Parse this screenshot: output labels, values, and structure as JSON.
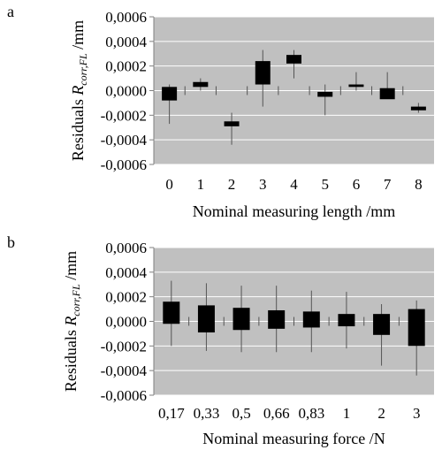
{
  "colors": {
    "plot_bg": "#c0c0c0",
    "gridline": "#ffffff",
    "box_fill": "#000000",
    "whisker": "#555555",
    "axis": "#808080"
  },
  "chart_data": [
    {
      "type": "box",
      "panel_label": "a",
      "title": "",
      "xlabel": "Nominal measuring length /mm",
      "ylabel_prefix": "Residuals ",
      "ylabel_var": "R",
      "ylabel_sub": "corr,FL",
      "ylabel_unit": " /mm",
      "ylim": [
        -0.0006,
        0.0006
      ],
      "yticks": [
        0.0006,
        0.0004,
        0.0002,
        0.0,
        -0.0002,
        -0.0004,
        -0.0006
      ],
      "ytick_labels": [
        "0,0006",
        "0,0004",
        "0,0002",
        "0,0000",
        "-0,0002",
        "-0,0004",
        "-0,0006"
      ],
      "grid": true,
      "categories": [
        "0",
        "1",
        "2",
        "3",
        "4",
        "5",
        "6",
        "7",
        "8"
      ],
      "whisker_low": [
        -0.00027,
        0.0,
        -0.00044,
        -0.00013,
        0.0001,
        -0.0002,
        0.0,
        -5e-05,
        -0.00018
      ],
      "box_low": [
        -8e-05,
        3e-05,
        -0.00029,
        5e-05,
        0.00022,
        -5e-05,
        3e-05,
        -7e-05,
        -0.00016
      ],
      "box_high": [
        3e-05,
        7e-05,
        -0.00025,
        0.00024,
        0.00029,
        -1e-05,
        5e-05,
        2e-05,
        -0.00013
      ],
      "whisker_high": [
        5e-05,
        0.0001,
        -0.00018,
        0.00033,
        0.00033,
        5e-05,
        0.00015,
        0.00015,
        -0.0001
      ]
    },
    {
      "type": "box",
      "panel_label": "b",
      "title": "",
      "xlabel": "Nominal measuring force /N",
      "ylabel_prefix": "Residuals ",
      "ylabel_var": "R",
      "ylabel_sub": "corr,FL",
      "ylabel_unit": " /mm",
      "ylim": [
        -0.0006,
        0.0006
      ],
      "yticks": [
        0.0006,
        0.0004,
        0.0002,
        0.0,
        -0.0002,
        -0.0004,
        -0.0006
      ],
      "ytick_labels": [
        "0,0006",
        "0,0004",
        "0,0002",
        "0,0000",
        "-0,0002",
        "-0,0004",
        "-0,0006"
      ],
      "grid": true,
      "categories": [
        "0,17",
        "0,33",
        "0,5",
        "0,66",
        "0,83",
        "1",
        "2",
        "3"
      ],
      "whisker_low": [
        -0.0002,
        -0.00024,
        -0.00025,
        -0.00025,
        -0.00025,
        -0.00022,
        -0.00036,
        -0.00044
      ],
      "box_low": [
        -2e-05,
        -9e-05,
        -7e-05,
        -6e-05,
        -5e-05,
        -4e-05,
        -0.00011,
        -0.0002
      ],
      "box_high": [
        0.00016,
        0.00013,
        0.00011,
        9e-05,
        8e-05,
        6e-05,
        6e-05,
        0.0001
      ],
      "whisker_high": [
        0.00033,
        0.00031,
        0.00029,
        0.00029,
        0.00025,
        0.00024,
        0.00014,
        0.00017
      ]
    }
  ]
}
